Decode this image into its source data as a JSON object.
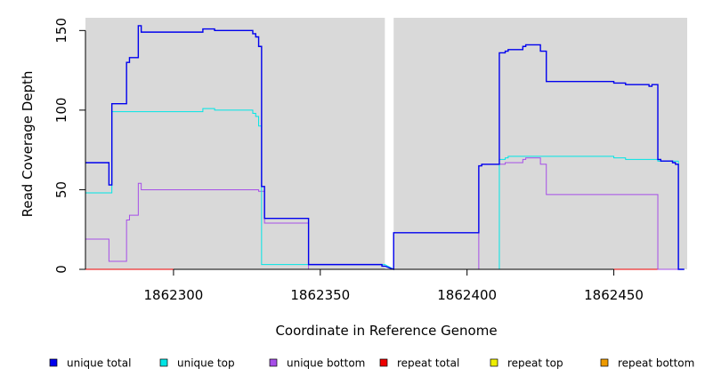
{
  "chart_data": {
    "type": "line",
    "xlabel": "Coordinate in Reference Genome",
    "ylabel": "Read Coverage Depth",
    "xlim": [
      1862270,
      1862475
    ],
    "ylim": [
      0,
      158
    ],
    "x_ticks": [
      1862300,
      1862350,
      1862400,
      1862450
    ],
    "y_ticks": [
      0,
      50,
      100,
      150
    ],
    "grid": false,
    "background": "#d9d9d9",
    "panels": [
      {
        "xrange": [
          1862270,
          1862372
        ]
      },
      {
        "xrange": [
          1862375,
          1862475
        ]
      }
    ],
    "legend_position": "bottom",
    "series": [
      {
        "name": "unique total",
        "color": "#0000ee",
        "points": [
          [
            1862270,
            67
          ],
          [
            1862278,
            67
          ],
          [
            1862278,
            53
          ],
          [
            1862279,
            53
          ],
          [
            1862279,
            104
          ],
          [
            1862284,
            104
          ],
          [
            1862284,
            130
          ],
          [
            1862285,
            130
          ],
          [
            1862285,
            133
          ],
          [
            1862288,
            133
          ],
          [
            1862288,
            153
          ],
          [
            1862289,
            153
          ],
          [
            1862289,
            149
          ],
          [
            1862310,
            149
          ],
          [
            1862310,
            151
          ],
          [
            1862314,
            151
          ],
          [
            1862314,
            150
          ],
          [
            1862327,
            150
          ],
          [
            1862327,
            148
          ],
          [
            1862328,
            148
          ],
          [
            1862328,
            146
          ],
          [
            1862329,
            146
          ],
          [
            1862329,
            140
          ],
          [
            1862330,
            140
          ],
          [
            1862330,
            52
          ],
          [
            1862331,
            52
          ],
          [
            1862331,
            32
          ],
          [
            1862346,
            32
          ],
          [
            1862346,
            3
          ],
          [
            1862371,
            3
          ],
          [
            1862371,
            2
          ],
          [
            1862372,
            2
          ],
          [
            1862375,
            0
          ],
          [
            1862375,
            23
          ],
          [
            1862404,
            23
          ],
          [
            1862404,
            65
          ],
          [
            1862405,
            65
          ],
          [
            1862405,
            66
          ],
          [
            1862411,
            66
          ],
          [
            1862411,
            136
          ],
          [
            1862413,
            136
          ],
          [
            1862413,
            137
          ],
          [
            1862414,
            137
          ],
          [
            1862414,
            138
          ],
          [
            1862419,
            138
          ],
          [
            1862419,
            140
          ],
          [
            1862420,
            140
          ],
          [
            1862420,
            141
          ],
          [
            1862425,
            141
          ],
          [
            1862425,
            137
          ],
          [
            1862427,
            137
          ],
          [
            1862427,
            118
          ],
          [
            1862450,
            118
          ],
          [
            1862450,
            117
          ],
          [
            1862454,
            117
          ],
          [
            1862454,
            116
          ],
          [
            1862462,
            116
          ],
          [
            1862462,
            115
          ],
          [
            1862463,
            115
          ],
          [
            1862463,
            116
          ],
          [
            1862465,
            116
          ],
          [
            1862465,
            69
          ],
          [
            1862466,
            69
          ],
          [
            1862466,
            68
          ],
          [
            1862470,
            68
          ],
          [
            1862470,
            67
          ],
          [
            1862471,
            67
          ],
          [
            1862471,
            66
          ],
          [
            1862472,
            66
          ],
          [
            1862472,
            0
          ],
          [
            1862474,
            0
          ]
        ]
      },
      {
        "name": "unique top",
        "color": "#00e5e5",
        "points": [
          [
            1862270,
            48
          ],
          [
            1862279,
            48
          ],
          [
            1862279,
            99
          ],
          [
            1862310,
            99
          ],
          [
            1862310,
            101
          ],
          [
            1862314,
            101
          ],
          [
            1862314,
            100
          ],
          [
            1862327,
            100
          ],
          [
            1862327,
            98
          ],
          [
            1862328,
            98
          ],
          [
            1862328,
            96
          ],
          [
            1862329,
            96
          ],
          [
            1862329,
            90
          ],
          [
            1862330,
            90
          ],
          [
            1862330,
            3
          ],
          [
            1862372,
            3
          ],
          [
            1862375,
            0
          ],
          [
            1862411,
            0
          ],
          [
            1862411,
            69
          ],
          [
            1862413,
            69
          ],
          [
            1862413,
            70
          ],
          [
            1862414,
            70
          ],
          [
            1862414,
            71
          ],
          [
            1862450,
            71
          ],
          [
            1862450,
            70
          ],
          [
            1862454,
            70
          ],
          [
            1862454,
            69
          ],
          [
            1862465,
            69
          ],
          [
            1862465,
            68
          ],
          [
            1862472,
            68
          ],
          [
            1862472,
            0
          ],
          [
            1862474,
            0
          ]
        ]
      },
      {
        "name": "unique bottom",
        "color": "#a64ee8",
        "points": [
          [
            1862270,
            19
          ],
          [
            1862278,
            19
          ],
          [
            1862278,
            5
          ],
          [
            1862284,
            5
          ],
          [
            1862284,
            31
          ],
          [
            1862285,
            31
          ],
          [
            1862285,
            34
          ],
          [
            1862288,
            34
          ],
          [
            1862288,
            54
          ],
          [
            1862289,
            54
          ],
          [
            1862289,
            50
          ],
          [
            1862329,
            50
          ],
          [
            1862329,
            49
          ],
          [
            1862331,
            49
          ],
          [
            1862331,
            29
          ],
          [
            1862346,
            29
          ],
          [
            1862346,
            0
          ],
          [
            1862372,
            0
          ],
          [
            1862375,
            0
          ],
          [
            1862404,
            0
          ],
          [
            1862404,
            65
          ],
          [
            1862405,
            65
          ],
          [
            1862405,
            66
          ],
          [
            1862413,
            66
          ],
          [
            1862413,
            67
          ],
          [
            1862419,
            67
          ],
          [
            1862419,
            69
          ],
          [
            1862420,
            69
          ],
          [
            1862420,
            70
          ],
          [
            1862425,
            70
          ],
          [
            1862425,
            66
          ],
          [
            1862427,
            66
          ],
          [
            1862427,
            47
          ],
          [
            1862465,
            47
          ],
          [
            1862465,
            0
          ],
          [
            1862474,
            0
          ]
        ]
      },
      {
        "name": "repeat total",
        "color": "#ee0000",
        "points": [
          [
            1862270,
            0
          ],
          [
            1862372,
            0
          ],
          [
            1862375,
            0
          ],
          [
            1862474,
            0
          ]
        ]
      },
      {
        "name": "repeat top",
        "color": "#eeee00",
        "points": [
          [
            1862270,
            0
          ],
          [
            1862372,
            0
          ],
          [
            1862375,
            0
          ],
          [
            1862474,
            0
          ]
        ]
      },
      {
        "name": "repeat bottom",
        "color": "#ee9a00",
        "points": [
          [
            1862270,
            0
          ],
          [
            1862372,
            0
          ],
          [
            1862375,
            0
          ],
          [
            1862474,
            0
          ]
        ]
      }
    ]
  }
}
